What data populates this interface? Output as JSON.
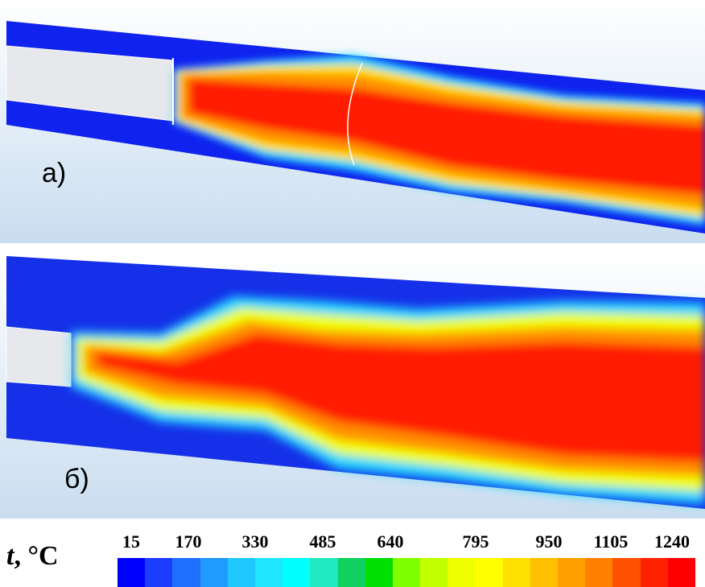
{
  "panels": [
    {
      "label": "a)"
    },
    {
      "label": "б)"
    }
  ],
  "legend": {
    "symbol": "t",
    "unit": ", °C",
    "tick_labels": [
      "15",
      "170",
      "330",
      "485",
      "640",
      "795",
      "950",
      "1105",
      "1240"
    ],
    "colors": [
      "#0000ff",
      "#1a3cff",
      "#1f6fff",
      "#1f9aff",
      "#1fc8ff",
      "#1fe6ff",
      "#00ffff",
      "#20e8c0",
      "#10d060",
      "#00e000",
      "#80ff00",
      "#c0ff00",
      "#f0ff00",
      "#ffff00",
      "#ffe000",
      "#ffc000",
      "#ffa000",
      "#ff8000",
      "#ff5000",
      "#ff2000",
      "#ff0000"
    ]
  }
}
